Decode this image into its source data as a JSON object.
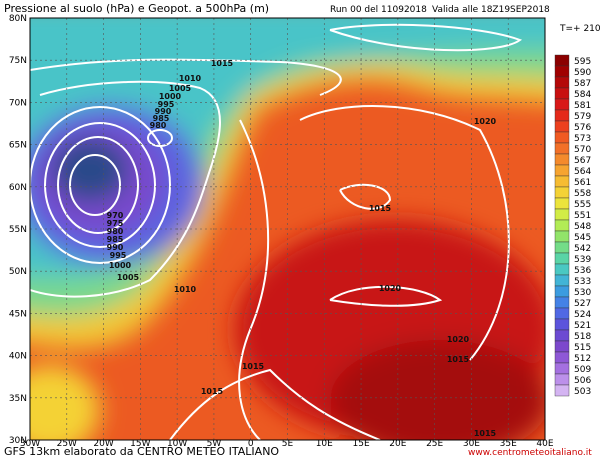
{
  "header": {
    "title": "Pressione al suolo (hPa) e Geopot. a 500hPa (m)",
    "run": "Run 00 del 11092018",
    "valid": "Valida alle 18Z19SEP2018",
    "step": "T=+ 210"
  },
  "footer": {
    "source": "GFS 13km elaborato da CENTRO METEO ITALIANO",
    "website": "www.centrometeoitaliano.it"
  },
  "map": {
    "lat_labels": [
      "80N",
      "75N",
      "70N",
      "65N",
      "60N",
      "55N",
      "50N",
      "45N",
      "40N",
      "35N",
      "30N"
    ],
    "lon_labels": [
      "30W",
      "25W",
      "20W",
      "15W",
      "10W",
      "5W",
      "0",
      "5E",
      "10E",
      "15E",
      "20E",
      "25E",
      "30E",
      "35E",
      "40E"
    ],
    "isobar_labels": [
      "1015",
      "1010",
      "1005",
      "1000",
      "995",
      "990",
      "985",
      "980",
      "970",
      "975",
      "980",
      "985",
      "990",
      "995",
      "1000",
      "1005",
      "1010",
      "1020",
      "1015",
      "1020",
      "1020",
      "1015",
      "1015",
      "1015",
      "1015"
    ]
  },
  "colorbar": {
    "labels": [
      595,
      590,
      587,
      584,
      581,
      579,
      576,
      573,
      570,
      567,
      564,
      561,
      558,
      555,
      551,
      548,
      545,
      542,
      539,
      536,
      533,
      530,
      527,
      524,
      521,
      518,
      515,
      512,
      509,
      506,
      503
    ],
    "colors": [
      "#8b0000",
      "#a00000",
      "#b40808",
      "#c81010",
      "#d81818",
      "#e42a1a",
      "#ec401e",
      "#f05a22",
      "#f27028",
      "#f48a2c",
      "#f6a430",
      "#f6bc32",
      "#f4d236",
      "#ece43c",
      "#d2ec46",
      "#b2ec56",
      "#92e46a",
      "#74dc88",
      "#5ad4a6",
      "#4ac8c2",
      "#42b4d6",
      "#3c9ce0",
      "#4482e6",
      "#5068e4",
      "#5c54dc",
      "#6c4ad2",
      "#7c48cc",
      "#8e58d6",
      "#a470e0",
      "#bc90ea",
      "#d4b4f2"
    ]
  }
}
